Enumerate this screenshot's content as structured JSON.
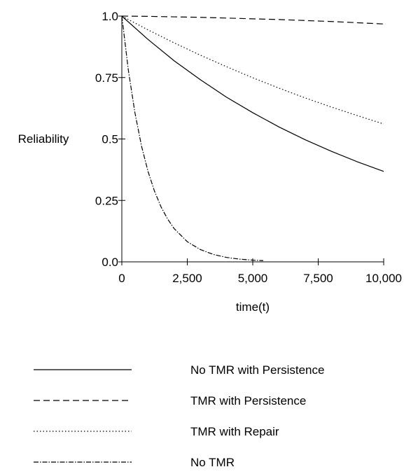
{
  "chart_data": {
    "type": "line",
    "title": "",
    "xlabel": "time(t)",
    "ylabel": "Reliability",
    "xlim": [
      0,
      10000
    ],
    "ylim": [
      0,
      1
    ],
    "grid": false,
    "legend_position": "bottom",
    "x_ticks": [
      {
        "value": 0,
        "label": "0"
      },
      {
        "value": 2500,
        "label": "2,500"
      },
      {
        "value": 5000,
        "label": "5,000"
      },
      {
        "value": 7500,
        "label": "7,500"
      },
      {
        "value": 10000,
        "label": "10,000"
      }
    ],
    "y_ticks": [
      {
        "value": 0,
        "label": "0.0"
      },
      {
        "value": 0.25,
        "label": "0.25"
      },
      {
        "value": 0.5,
        "label": "0.5"
      },
      {
        "value": 0.75,
        "label": "0.75"
      },
      {
        "value": 1,
        "label": "1.0"
      }
    ],
    "series": [
      {
        "name": "No TMR with Persistence",
        "line_style": "solid",
        "color": "#000000",
        "x": [
          0,
          1000,
          2000,
          3000,
          4000,
          5000,
          6000,
          7000,
          8000,
          9000,
          10000
        ],
        "y": [
          1.0,
          0.905,
          0.818,
          0.741,
          0.67,
          0.607,
          0.549,
          0.497,
          0.45,
          0.407,
          0.368
        ]
      },
      {
        "name": "TMR with Persistence",
        "line_style": "dashed",
        "color": "#000000",
        "x": [
          0,
          1000,
          2000,
          3000,
          4000,
          5000,
          6000,
          7000,
          8000,
          9000,
          10000
        ],
        "y": [
          1.0,
          0.999,
          0.997,
          0.995,
          0.992,
          0.989,
          0.986,
          0.982,
          0.978,
          0.973,
          0.968
        ]
      },
      {
        "name": "TMR with Repair",
        "line_style": "dotted",
        "color": "#000000",
        "x": [
          0,
          1000,
          2000,
          3000,
          4000,
          5000,
          6000,
          7000,
          8000,
          9000,
          10000
        ],
        "y": [
          1.0,
          0.944,
          0.891,
          0.841,
          0.794,
          0.749,
          0.707,
          0.667,
          0.63,
          0.595,
          0.561
        ]
      },
      {
        "name": "No TMR",
        "line_style": "dash-dot",
        "color": "#000000",
        "x": [
          0,
          250,
          500,
          750,
          1000,
          1250,
          1500,
          1750,
          2000,
          2500,
          3000,
          3500,
          4000,
          4500,
          5000,
          5400
        ],
        "y": [
          1.0,
          0.779,
          0.607,
          0.472,
          0.368,
          0.287,
          0.223,
          0.174,
          0.135,
          0.082,
          0.05,
          0.03,
          0.018,
          0.011,
          0.007,
          0.005
        ]
      }
    ]
  }
}
